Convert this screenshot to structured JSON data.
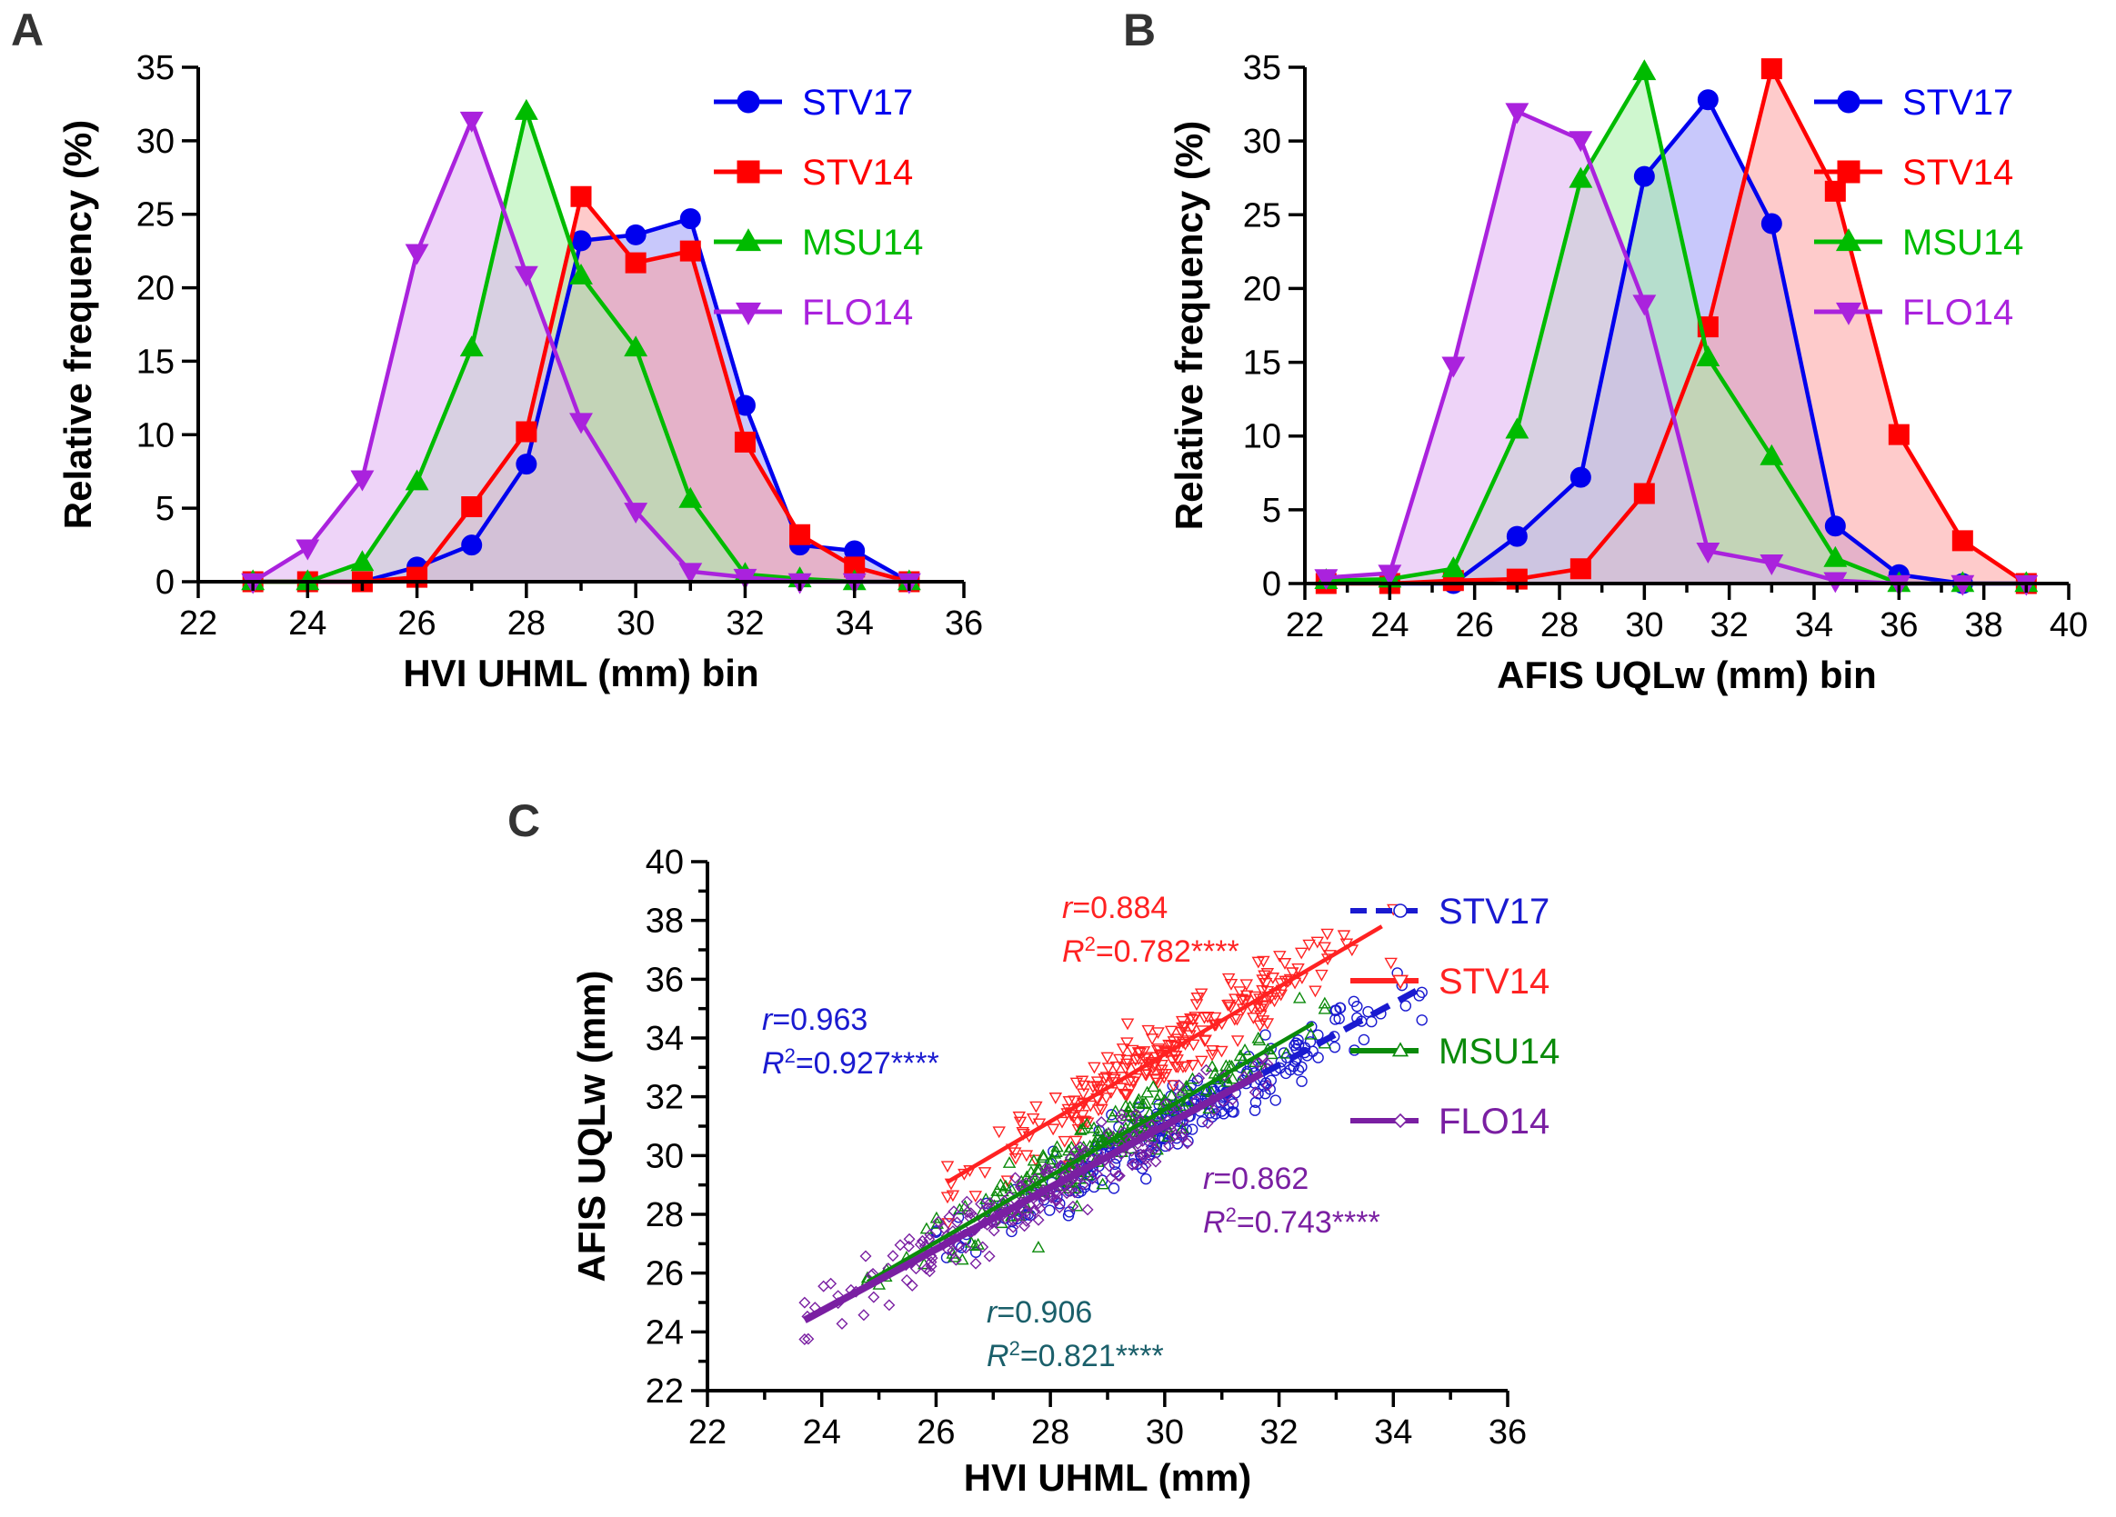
{
  "chart_data": [
    {
      "panel": "A",
      "type": "area",
      "xlabel": "HVI UHML (mm) bin",
      "ylabel": "Relative frequency (%)",
      "xlim": [
        22,
        36
      ],
      "ylim": [
        0,
        35
      ],
      "xticks": [
        22,
        24,
        26,
        28,
        30,
        32,
        34,
        36
      ],
      "yticks": [
        0,
        5,
        10,
        15,
        20,
        25,
        30,
        35
      ],
      "legend_position": "top-right",
      "series": [
        {
          "name": "STV17",
          "color": "#0000ee",
          "fill": "#9b9bf7",
          "marker": "circle",
          "x": [
            23,
            24,
            25,
            26,
            27,
            28,
            29,
            30,
            31,
            32,
            33,
            34,
            35
          ],
          "values": [
            0,
            0,
            0,
            1,
            2.5,
            8,
            23.2,
            23.6,
            24.7,
            12,
            2.5,
            2.1,
            0
          ]
        },
        {
          "name": "STV14",
          "color": "#ff0000",
          "fill": "#fda0a0",
          "marker": "square",
          "x": [
            23,
            24,
            25,
            26,
            27,
            28,
            29,
            30,
            31,
            32,
            33,
            34,
            35
          ],
          "values": [
            0,
            0,
            0,
            0.3,
            5.1,
            10.2,
            26.2,
            21.7,
            22.5,
            9.5,
            3.2,
            1,
            0
          ]
        },
        {
          "name": "MSU14",
          "color": "#00bb00",
          "fill": "#a8f0a8",
          "marker": "triangle",
          "x": [
            23,
            24,
            25,
            26,
            27,
            28,
            29,
            30,
            31,
            32,
            33,
            34,
            35
          ],
          "values": [
            0,
            0,
            1.3,
            6.8,
            15.9,
            32,
            20.8,
            15.9,
            5.6,
            0.5,
            0.2,
            0,
            0
          ]
        },
        {
          "name": "FLO14",
          "color": "#aa22dd",
          "fill": "#e0b0f2",
          "marker": "triangle-down",
          "x": [
            23,
            24,
            25,
            26,
            27,
            28,
            29,
            30,
            31,
            32,
            33,
            34,
            35
          ],
          "values": [
            0,
            2.3,
            7,
            22.4,
            31.4,
            20.9,
            10.9,
            4.8,
            0.7,
            0.3,
            0,
            0,
            0
          ]
        }
      ]
    },
    {
      "panel": "B",
      "type": "area",
      "xlabel": "AFIS UQLw (mm) bin",
      "ylabel": "Relative frequency (%)",
      "xlim": [
        22,
        40
      ],
      "ylim": [
        0,
        35
      ],
      "xticks": [
        22,
        24,
        26,
        28,
        30,
        32,
        34,
        36,
        38,
        40
      ],
      "yticks": [
        0,
        5,
        10,
        15,
        20,
        25,
        30,
        35
      ],
      "legend_position": "top-right",
      "series": [
        {
          "name": "STV17",
          "color": "#0000ee",
          "fill": "#9b9bf7",
          "marker": "circle",
          "x": [
            22.5,
            24,
            25.5,
            27,
            28.5,
            30,
            31.5,
            33,
            34.5,
            36,
            37.5,
            39
          ],
          "values": [
            0.1,
            0,
            0,
            3.2,
            7.2,
            27.6,
            32.8,
            24.4,
            3.9,
            0.6,
            0,
            0
          ]
        },
        {
          "name": "STV14",
          "color": "#ff0000",
          "fill": "#fda0a0",
          "marker": "square",
          "x": [
            22.5,
            24,
            25.5,
            27,
            28.5,
            30,
            31.5,
            33,
            34.5,
            36,
            37.5,
            39
          ],
          "values": [
            0,
            0,
            0.2,
            0.3,
            1,
            6.1,
            17.4,
            34.9,
            26.6,
            10.1,
            2.9,
            0
          ]
        },
        {
          "name": "MSU14",
          "color": "#00bb00",
          "fill": "#a8f0a8",
          "marker": "triangle",
          "x": [
            22.5,
            24,
            25.5,
            27,
            28.5,
            30,
            31.5,
            33,
            34.5,
            36,
            37.5,
            39
          ],
          "values": [
            0.2,
            0.3,
            1,
            10.4,
            27.4,
            34.7,
            15.3,
            8.6,
            1.7,
            0,
            0,
            0
          ]
        },
        {
          "name": "FLO14",
          "color": "#aa22dd",
          "fill": "#e0b0f2",
          "marker": "triangle-down",
          "x": [
            22.5,
            24,
            25.5,
            27,
            28.5,
            30,
            31.5,
            33,
            34.5,
            36,
            37.5,
            39
          ],
          "values": [
            0.4,
            0.7,
            14.8,
            32,
            30.1,
            19,
            2.2,
            1.4,
            0.2,
            0,
            0,
            0
          ]
        }
      ]
    },
    {
      "panel": "C",
      "type": "scatter",
      "xlabel": "HVI UHML (mm)",
      "ylabel": "AFIS UQLw (mm)",
      "xlim": [
        22,
        36
      ],
      "ylim": [
        22,
        40
      ],
      "xticks": [
        22,
        24,
        26,
        28,
        30,
        32,
        34,
        36
      ],
      "yticks": [
        22,
        24,
        26,
        28,
        30,
        32,
        34,
        36,
        38,
        40
      ],
      "legend_position": "top-right",
      "series": [
        {
          "name": "STV17",
          "color": "#1a1ad0",
          "marker": "circle",
          "line_style": "dashed",
          "fit": {
            "x": [
              26,
              34.4
            ],
            "y": [
              26.8,
              35.6
            ]
          },
          "x_range": [
            26,
            34.5
          ],
          "stats": {
            "r": "0.963",
            "R2": "0.927****"
          }
        },
        {
          "name": "STV14",
          "color": "#ff2222",
          "marker": "triangle-down",
          "line_style": "solid",
          "fit": {
            "x": [
              26.2,
              33.8
            ],
            "y": [
              29.1,
              37.8
            ]
          },
          "x_range": [
            26.2,
            34
          ],
          "stats": {
            "r": "0.884",
            "R2": "0.782****"
          }
        },
        {
          "name": "MSU14",
          "color": "#0a8a0a",
          "marker": "triangle",
          "line_style": "solid",
          "fit": {
            "x": [
              24.8,
              32.6
            ],
            "y": [
              25.7,
              34.5
            ]
          },
          "x_range": [
            24.8,
            32.8
          ],
          "stats": {
            "r": "0.906",
            "R2": "0.821****"
          }
        },
        {
          "name": "FLO14",
          "color": "#7a1fa2",
          "marker": "diamond",
          "line_style": "solid",
          "fit": {
            "x": [
              23.7,
              31.7
            ],
            "y": [
              24.4,
              32.8
            ]
          },
          "x_range": [
            23.7,
            31.8
          ],
          "stats": {
            "r": "0.862",
            "R2": "0.743****"
          }
        }
      ]
    }
  ]
}
